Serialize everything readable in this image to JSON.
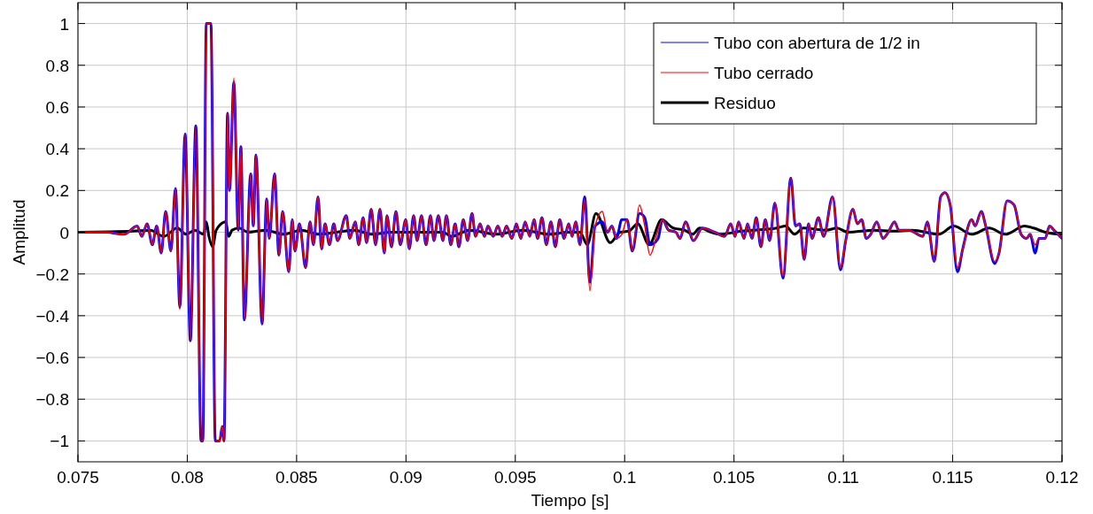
{
  "chart_data": {
    "type": "line",
    "xlabel": "Tiempo [s]",
    "ylabel": "Amplitud",
    "xlim": [
      0.075,
      0.12
    ],
    "ylim": [
      -1.1,
      1.1
    ],
    "xticks": [
      0.075,
      0.08,
      0.085,
      0.09,
      0.095,
      0.1,
      0.105,
      0.11,
      0.115,
      0.12
    ],
    "yticks": [
      -1,
      -0.8,
      -0.6,
      -0.4,
      -0.2,
      0,
      0.2,
      0.4,
      0.6,
      0.8,
      1
    ],
    "grid": true,
    "legend": "top right",
    "x": [
      0.075,
      0.0763,
      0.07711,
      0.07771,
      0.07792,
      0.07816,
      0.0784,
      0.0786,
      0.07881,
      0.07901,
      0.07925,
      0.07946,
      0.07966,
      0.0799,
      0.08014,
      0.08039,
      0.08063,
      0.08071,
      0.08087,
      0.08108,
      0.08128,
      0.08148,
      0.0816,
      0.08168,
      0.08184,
      0.08193,
      0.08213,
      0.08233,
      0.08245,
      0.08261,
      0.0829,
      0.08302,
      0.08314,
      0.08342,
      0.08363,
      0.08375,
      0.08399,
      0.08419,
      0.08436,
      0.08464,
      0.0848,
      0.08492,
      0.08513,
      0.08541,
      0.08561,
      0.08577,
      0.08598,
      0.08614,
      0.0863,
      0.0865,
      0.0867,
      0.08687,
      0.08727,
      0.08743,
      0.08768,
      0.08784,
      0.08804,
      0.0882,
      0.08841,
      0.08861,
      0.08881,
      0.08901,
      0.08913,
      0.08934,
      0.08954,
      0.08974,
      0.08999,
      0.09015,
      0.09035,
      0.09051,
      0.09071,
      0.09092,
      0.09112,
      0.09128,
      0.09148,
      0.09169,
      0.09185,
      0.09205,
      0.09225,
      0.09242,
      0.09262,
      0.09282,
      0.09302,
      0.09318,
      0.09339,
      0.09359,
      0.09375,
      0.09399,
      0.0942,
      0.0944,
      0.0946,
      0.09484,
      0.09505,
      0.09525,
      0.09545,
      0.09566,
      0.09586,
      0.09602,
      0.09622,
      0.09642,
      0.09663,
      0.09683,
      0.09703,
      0.09723,
      0.09744,
      0.0976,
      0.09776,
      0.09796,
      0.09817,
      0.09841,
      0.09865,
      0.09898,
      0.09922,
      0.09942,
      0.09962,
      0.09987,
      0.10011,
      0.10035,
      0.10068,
      0.10092,
      0.10116,
      0.10153,
      0.10173,
      0.10201,
      0.10234,
      0.10254,
      0.10278,
      0.10315,
      0.10355,
      0.10412,
      0.10457,
      0.10485,
      0.10505,
      0.10521,
      0.10546,
      0.10562,
      0.10582,
      0.10602,
      0.10623,
      0.10643,
      0.10663,
      0.10687,
      0.10724,
      0.1076,
      0.10781,
      0.10801,
      0.10821,
      0.10841,
      0.10857,
      0.10886,
      0.1091,
      0.10951,
      0.10987,
      0.11011,
      0.11044,
      0.11064,
      0.11084,
      0.11105,
      0.11125,
      0.11153,
      0.11181,
      0.11206,
      0.11234,
      0.11254,
      0.11303,
      0.11323,
      0.11364,
      0.11384,
      0.11416,
      0.11445,
      0.11465,
      0.11489,
      0.11522,
      0.11546,
      0.11587,
      0.11603,
      0.11631,
      0.11651,
      0.11692,
      0.11712,
      0.11749,
      0.11781,
      0.11813,
      0.11838,
      0.11854,
      0.11878,
      0.11894,
      0.11923,
      0.11943,
      0.11963,
      0.12
    ],
    "series": [
      {
        "name": "Tubo con abertura de 1/2 in",
        "color": "#0000ff",
        "values": [
          0,
          0,
          -0.01,
          0.03,
          -0.02,
          0.04,
          -0.06,
          0.03,
          -0.1,
          0.1,
          -0.09,
          0.21,
          -0.36,
          0.47,
          -0.52,
          0.51,
          -1,
          -1,
          1,
          1,
          -1,
          -1,
          -0.93,
          -1,
          0.57,
          0.2,
          0.72,
          0.01,
          0.41,
          -0.42,
          0.28,
          0.03,
          0.37,
          -0.44,
          0.16,
          -0.03,
          0.28,
          -0.11,
          0.1,
          -0.19,
          0.06,
          -0.09,
          0.04,
          -0.17,
          0.05,
          -0.06,
          0.17,
          -0.08,
          0.04,
          -0.06,
          0.04,
          -0.04,
          0.08,
          -0.03,
          0.05,
          -0.06,
          0.07,
          -0.05,
          0.11,
          -0.06,
          0.11,
          -0.1,
          0.08,
          -0.07,
          0.1,
          -0.06,
          0.06,
          -0.08,
          0.08,
          -0.04,
          0.08,
          -0.06,
          0.08,
          -0.04,
          0.08,
          -0.04,
          0.08,
          -0.06,
          0.04,
          -0.07,
          0.06,
          -0.04,
          0.09,
          -0.02,
          0.04,
          -0.02,
          0.03,
          -0.02,
          0.03,
          -0.02,
          0.03,
          -0.03,
          0.04,
          -0.03,
          0.05,
          -0.02,
          0.06,
          -0.03,
          0.07,
          -0.06,
          0.05,
          -0.07,
          0.06,
          -0.03,
          0.04,
          -0.02,
          0.05,
          -0.06,
          0.17,
          -0.24,
          0.03,
          0.05,
          0,
          0.03,
          -0.03,
          0.06,
          0.06,
          -0.09,
          0.09,
          0.07,
          -0.06,
          -0.03,
          0.06,
          0.01,
          0,
          -0.03,
          0.05,
          -0.04,
          0.02,
          0,
          -0.02,
          0.04,
          -0.02,
          0.05,
          -0.03,
          0.04,
          -0.03,
          0.07,
          -0.07,
          0.06,
          -0.04,
          0.14,
          -0.22,
          0.26,
          0.03,
          0.04,
          -0.13,
          0.04,
          -0.03,
          0.07,
          -0.02,
          0.17,
          -0.18,
          -0.04,
          0.11,
          0.04,
          0.06,
          -0.03,
          -0.01,
          0.05,
          -0.03,
          0,
          0.05,
          0.01,
          0.01,
          0,
          -0.02,
          0.05,
          -0.14,
          0.17,
          0.19,
          0.13,
          -0.19,
          -0.08,
          0.06,
          0.03,
          0.1,
          0.03,
          -0.15,
          -0.1,
          0.15,
          0.13,
          -0.01,
          -0.03,
          -0.01,
          -0.1,
          -0.03,
          -0.03,
          0.03,
          0.01,
          -0.03
        ]
      },
      {
        "name": "Tubo cerrado",
        "color": "#ff0000",
        "values": [
          0,
          0,
          -0.01,
          0.03,
          -0.02,
          0.04,
          -0.06,
          0.03,
          -0.1,
          0.1,
          -0.09,
          0.21,
          -0.37,
          0.47,
          -0.52,
          0.51,
          -1,
          -1,
          1,
          1,
          -1,
          -1,
          -0.93,
          -1,
          0.57,
          0.2,
          0.74,
          0.01,
          0.41,
          -0.42,
          0.28,
          0.03,
          0.37,
          -0.44,
          0.16,
          -0.03,
          0.28,
          -0.11,
          0.1,
          -0.19,
          0.06,
          -0.09,
          0.04,
          -0.17,
          0.05,
          -0.06,
          0.17,
          -0.08,
          0.04,
          -0.06,
          0.04,
          -0.04,
          0.08,
          -0.03,
          0.05,
          -0.06,
          0.07,
          -0.05,
          0.11,
          -0.06,
          0.11,
          -0.1,
          0.08,
          -0.07,
          0.1,
          -0.06,
          0.06,
          -0.08,
          0.08,
          -0.04,
          0.08,
          -0.06,
          0.08,
          -0.04,
          0.08,
          -0.04,
          0.08,
          -0.06,
          0.04,
          -0.07,
          0.06,
          -0.04,
          0.09,
          -0.02,
          0.04,
          -0.02,
          0.03,
          -0.02,
          0.03,
          -0.02,
          0.03,
          -0.03,
          0.04,
          -0.03,
          0.05,
          -0.02,
          0.06,
          -0.03,
          0.07,
          -0.06,
          0.05,
          -0.07,
          0.06,
          -0.03,
          0.04,
          -0.02,
          0.05,
          -0.06,
          0.16,
          -0.28,
          0.03,
          0.1,
          0,
          0.03,
          -0.03,
          -0.01,
          0.06,
          -0.09,
          0.13,
          0.03,
          -0.11,
          0.01,
          0.06,
          0.01,
          0,
          -0.03,
          0.05,
          -0.04,
          0.02,
          0,
          -0.02,
          0.04,
          -0.02,
          0.05,
          -0.03,
          0.04,
          -0.03,
          0.07,
          -0.07,
          0.06,
          -0.04,
          0.14,
          -0.21,
          0.26,
          0.03,
          0.04,
          -0.13,
          0.04,
          -0.03,
          0.07,
          -0.02,
          0.17,
          -0.17,
          -0.04,
          0.11,
          0.04,
          0.06,
          -0.03,
          -0.01,
          0.05,
          -0.03,
          0,
          0.05,
          0.01,
          0.01,
          0,
          -0.02,
          0.05,
          -0.14,
          0.17,
          0.19,
          0.13,
          -0.17,
          -0.08,
          0.06,
          0.03,
          0.1,
          0.03,
          -0.14,
          -0.1,
          0.15,
          0.13,
          -0.01,
          -0.03,
          -0.01,
          -0.06,
          -0.03,
          -0.03,
          0.03,
          0.01,
          -0.03
        ]
      },
      {
        "name": "Residuo",
        "color": "#000000",
        "x": [
          0.075,
          0.07751,
          0.07832,
          0.07893,
          0.07954,
          0.07994,
          0.08035,
          0.08075,
          0.08087,
          0.08099,
          0.08116,
          0.08132,
          0.08176,
          0.08189,
          0.08205,
          0.08237,
          0.08278,
          0.08359,
          0.0844,
          0.08521,
          0.08602,
          0.08683,
          0.08764,
          0.08845,
          0.08926,
          0.09047,
          0.09169,
          0.09209,
          0.0929,
          0.09412,
          0.09533,
          0.09655,
          0.09736,
          0.09796,
          0.09829,
          0.09869,
          0.09934,
          0.09979,
          0.10019,
          0.1006,
          0.10112,
          0.10169,
          0.10222,
          0.10274,
          0.10311,
          0.10343,
          0.10396,
          0.10436,
          0.10534,
          0.10696,
          0.10736,
          0.10777,
          0.10817,
          0.10922,
          0.10971,
          0.1102,
          0.11141,
          0.11234,
          0.11315,
          0.11437,
          0.11505,
          0.11587,
          0.11667,
          0.1174,
          0.11829,
          0.1187,
          0.11923,
          0.12
        ],
        "values": [
          0,
          0.005,
          0.01,
          -0.02,
          0.02,
          -0.01,
          0.01,
          -0.01,
          0.05,
          -0.02,
          -0.07,
          0.01,
          0.05,
          -0.02,
          0.01,
          0.02,
          0,
          0.01,
          -0.01,
          0.01,
          -0.01,
          0,
          0.01,
          -0.01,
          0,
          0,
          0,
          -0.02,
          0.01,
          -0.01,
          0.01,
          -0.01,
          0,
          0,
          -0.06,
          0.09,
          -0.05,
          0,
          0.005,
          0.04,
          -0.06,
          0.06,
          0.02,
          0.01,
          -0.01,
          0.02,
          0,
          -0.01,
          0.005,
          0.02,
          0.03,
          -0.01,
          0.02,
          0.01,
          0.02,
          0,
          0.01,
          0.005,
          0.01,
          -0.01,
          0.03,
          -0.01,
          0.02,
          -0.01,
          0.03,
          0.02,
          0,
          -0.01
        ]
      }
    ]
  }
}
